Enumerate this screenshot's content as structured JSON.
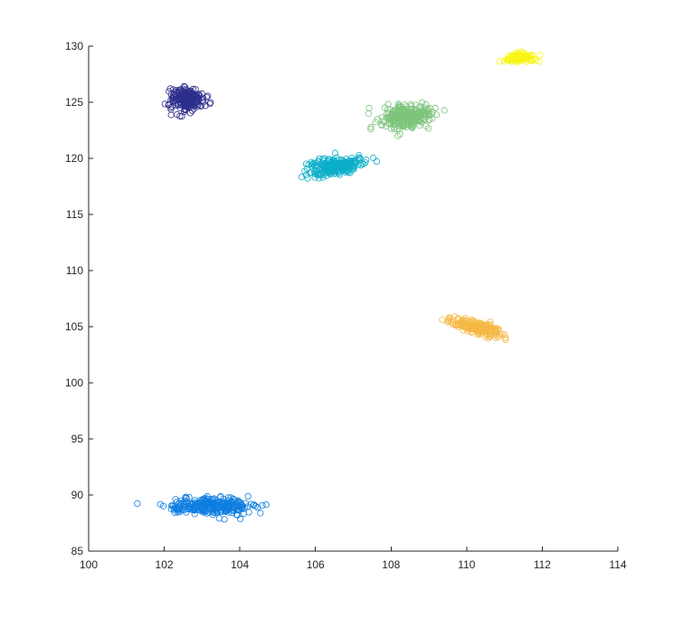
{
  "chart_data": {
    "type": "scatter",
    "title": "",
    "xlabel": "",
    "ylabel": "",
    "xlim": [
      100,
      114
    ],
    "ylim": [
      85,
      130
    ],
    "xticks": [
      100,
      102,
      104,
      106,
      108,
      110,
      112,
      114
    ],
    "yticks": [
      85,
      90,
      95,
      100,
      105,
      110,
      115,
      120,
      125,
      130
    ],
    "grid": false,
    "marker": "circle-open",
    "series": [
      {
        "color": "#2e2e8c",
        "cx": 102.6,
        "cy": 125.3,
        "sx": 0.22,
        "sy": 0.5,
        "slope": 0,
        "n": 220
      },
      {
        "color": "#0f7ee0",
        "cx": 103.2,
        "cy": 89.0,
        "sx": 0.55,
        "sy": 0.35,
        "slope": 0,
        "n": 300
      },
      {
        "color": "#0cafc9",
        "cx": 106.5,
        "cy": 119.3,
        "sx": 0.35,
        "sy": 0.4,
        "slope": 0.4,
        "n": 240
      },
      {
        "color": "#7ec57c",
        "cx": 108.4,
        "cy": 123.7,
        "sx": 0.35,
        "sy": 0.55,
        "slope": 0.5,
        "n": 260
      },
      {
        "color": "#f5b945",
        "cx": 110.3,
        "cy": 104.9,
        "sx": 0.35,
        "sy": 0.25,
        "slope": -0.8,
        "n": 220
      },
      {
        "color": "#f8f514",
        "cx": 111.4,
        "cy": 129.0,
        "sx": 0.2,
        "sy": 0.18,
        "slope": 0,
        "n": 120
      }
    ]
  }
}
